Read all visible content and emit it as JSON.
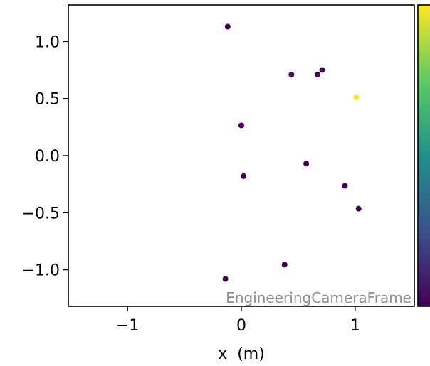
{
  "chart_data": {
    "type": "scatter",
    "xlabel": "x  (m)",
    "ylabel": "",
    "xlim": [
      -1.52,
      1.52
    ],
    "ylim": [
      -1.32,
      1.32
    ],
    "x_ticks": [
      -1,
      0,
      1
    ],
    "x_tick_labels": [
      "−1",
      "0",
      "1"
    ],
    "y_ticks": [
      -1.0,
      -0.5,
      0.0,
      0.5,
      1.0
    ],
    "y_tick_labels": [
      "−1.0",
      "−0.5",
      "0.0",
      "0.5",
      "1.0"
    ],
    "grid": false,
    "annotation": "EngineeringCameraFrame",
    "colorbar": {
      "colormap": "viridis",
      "tick_labels": []
    },
    "points": [
      {
        "x": -0.12,
        "y": 1.13,
        "color": "#440154"
      },
      {
        "x": 0.44,
        "y": 0.71,
        "color": "#440154"
      },
      {
        "x": 0.67,
        "y": 0.71,
        "color": "#440154"
      },
      {
        "x": 0.71,
        "y": 0.75,
        "color": "#440154"
      },
      {
        "x": 1.01,
        "y": 0.51,
        "color": "#fde725"
      },
      {
        "x": 0.0,
        "y": 0.265,
        "color": "#440154"
      },
      {
        "x": 0.57,
        "y": -0.07,
        "color": "#440154"
      },
      {
        "x": 0.02,
        "y": -0.18,
        "color": "#440154"
      },
      {
        "x": 0.91,
        "y": -0.265,
        "color": "#440154"
      },
      {
        "x": 1.03,
        "y": -0.465,
        "color": "#440154"
      },
      {
        "x": 0.38,
        "y": -0.955,
        "color": "#440154"
      },
      {
        "x": -0.14,
        "y": -1.08,
        "color": "#440154"
      }
    ]
  }
}
